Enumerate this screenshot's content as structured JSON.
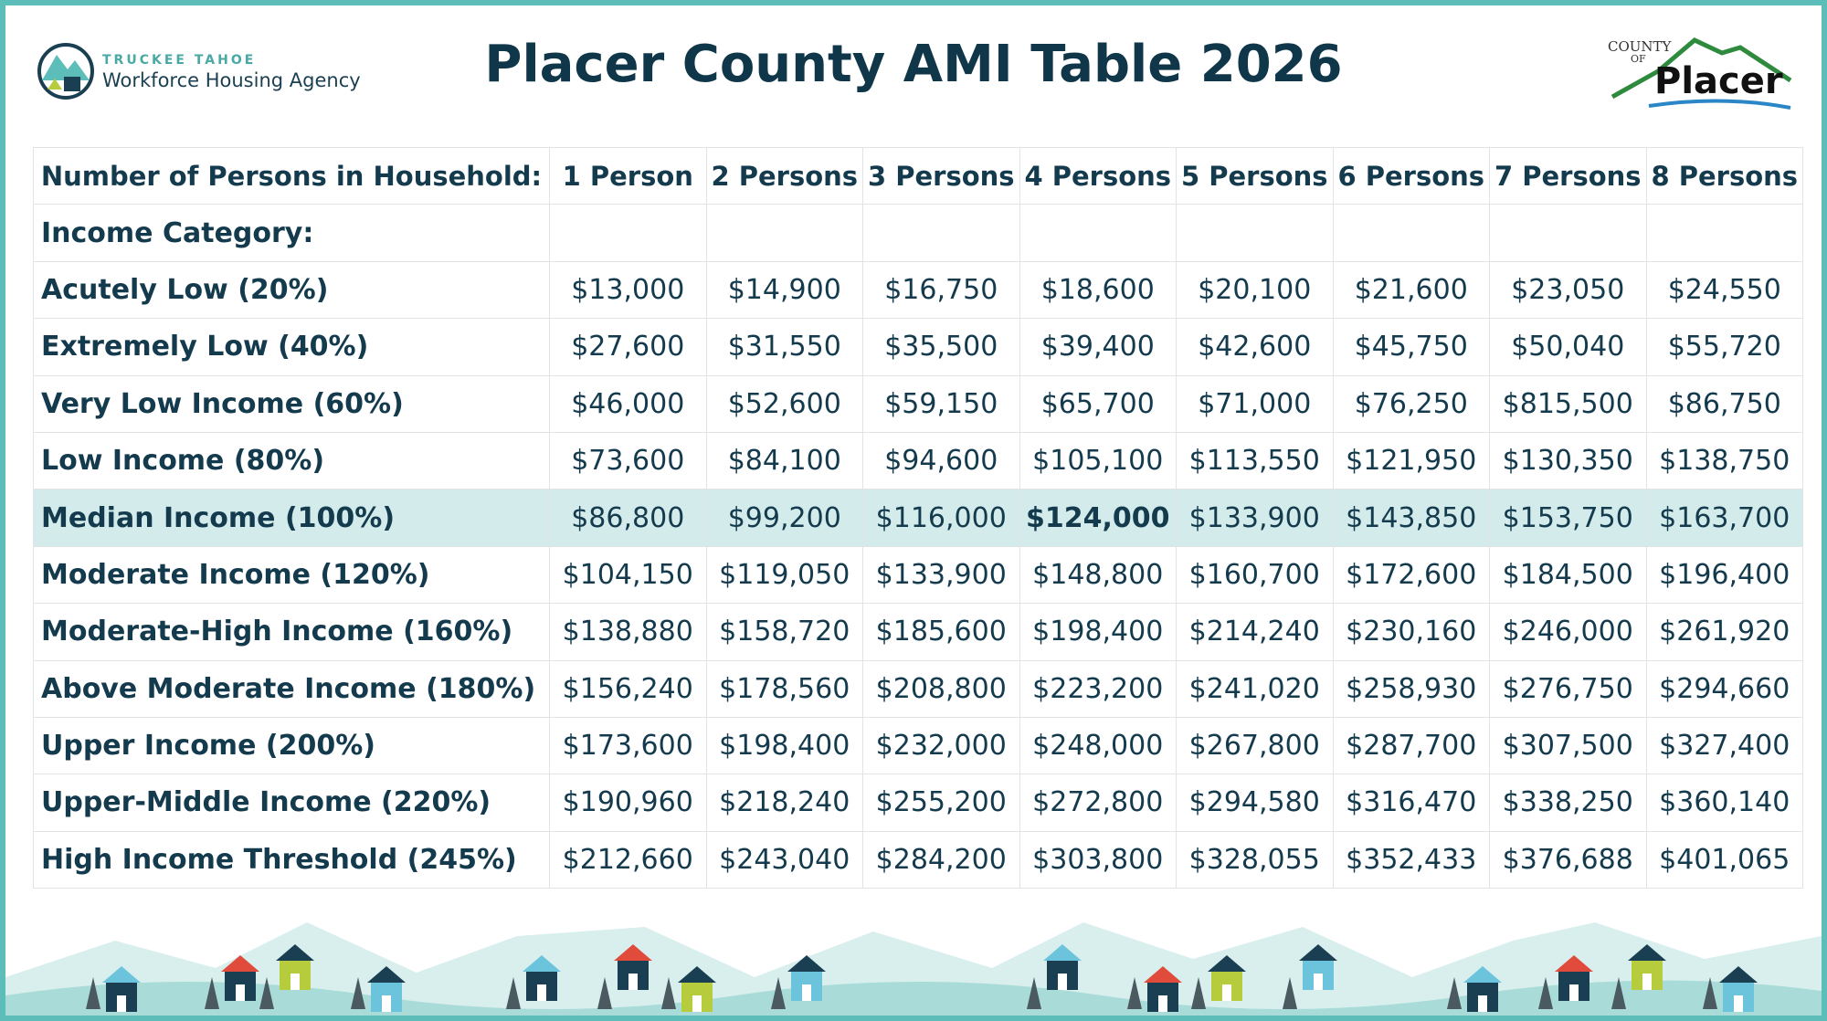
{
  "header": {
    "left_logo": {
      "line1": "TRUCKEE TAHOE",
      "line2": "Workforce Housing Agency"
    },
    "title": "Placer County AMI Table 2026",
    "right_logo": {
      "county": "COUNTY",
      "of": "OF",
      "name": "Placer"
    }
  },
  "table": {
    "columns": [
      "Number of Persons in Household:",
      "1 Person",
      "2 Persons",
      "3 Persons",
      "4 Persons",
      "5 Persons",
      "6 Persons",
      "7 Persons",
      "8 Persons"
    ],
    "section_label": "Income Category:",
    "rows": [
      [
        "Acutely Low (20%)",
        "$13,000",
        "$14,900",
        "$16,750",
        "$18,600",
        "$20,100",
        "$21,600",
        "$23,050",
        "$24,550"
      ],
      [
        "Extremely Low (40%)",
        "$27,600",
        "$31,550",
        "$35,500",
        "$39,400",
        "$42,600",
        "$45,750",
        "$50,040",
        "$55,720"
      ],
      [
        "Very Low Income (60%)",
        "$46,000",
        "$52,600",
        "$59,150",
        "$65,700",
        "$71,000",
        "$76,250",
        "$815,500",
        "$86,750"
      ],
      [
        "Low Income (80%)",
        "$73,600",
        "$84,100",
        "$94,600",
        "$105,100",
        "$113,550",
        "$121,950",
        "$130,350",
        "$138,750"
      ],
      [
        "Median Income (100%)",
        "$86,800",
        "$99,200",
        "$116,000",
        "$124,000",
        "$133,900",
        "$143,850",
        "$153,750",
        "$163,700"
      ],
      [
        "Moderate Income (120%)",
        "$104,150",
        "$119,050",
        "$133,900",
        "$148,800",
        "$160,700",
        "$172,600",
        "$184,500",
        "$196,400"
      ],
      [
        "Moderate-High Income (160%)",
        "$138,880",
        "$158,720",
        "$185,600",
        "$198,400",
        "$214,240",
        "$230,160",
        "$246,000",
        "$261,920"
      ],
      [
        "Above Moderate Income (180%)",
        "$156,240",
        "$178,560",
        "$208,800",
        "$223,200",
        "$241,020",
        "$258,930",
        "$276,750",
        "$294,660"
      ],
      [
        "Upper Income (200%)",
        "$173,600",
        "$198,400",
        "$232,000",
        "$248,000",
        "$267,800",
        "$287,700",
        "$307,500",
        "$327,400"
      ],
      [
        "Upper-Middle Income (220%)",
        "$190,960",
        "$218,240",
        "$255,200",
        "$272,800",
        "$294,580",
        "$316,470",
        "$338,250",
        "$360,140"
      ],
      [
        "High Income Threshold (245%)",
        "$212,660",
        "$243,040",
        "$284,200",
        "$303,800",
        "$328,055",
        "$352,433",
        "$376,688",
        "$401,065"
      ]
    ]
  }
}
